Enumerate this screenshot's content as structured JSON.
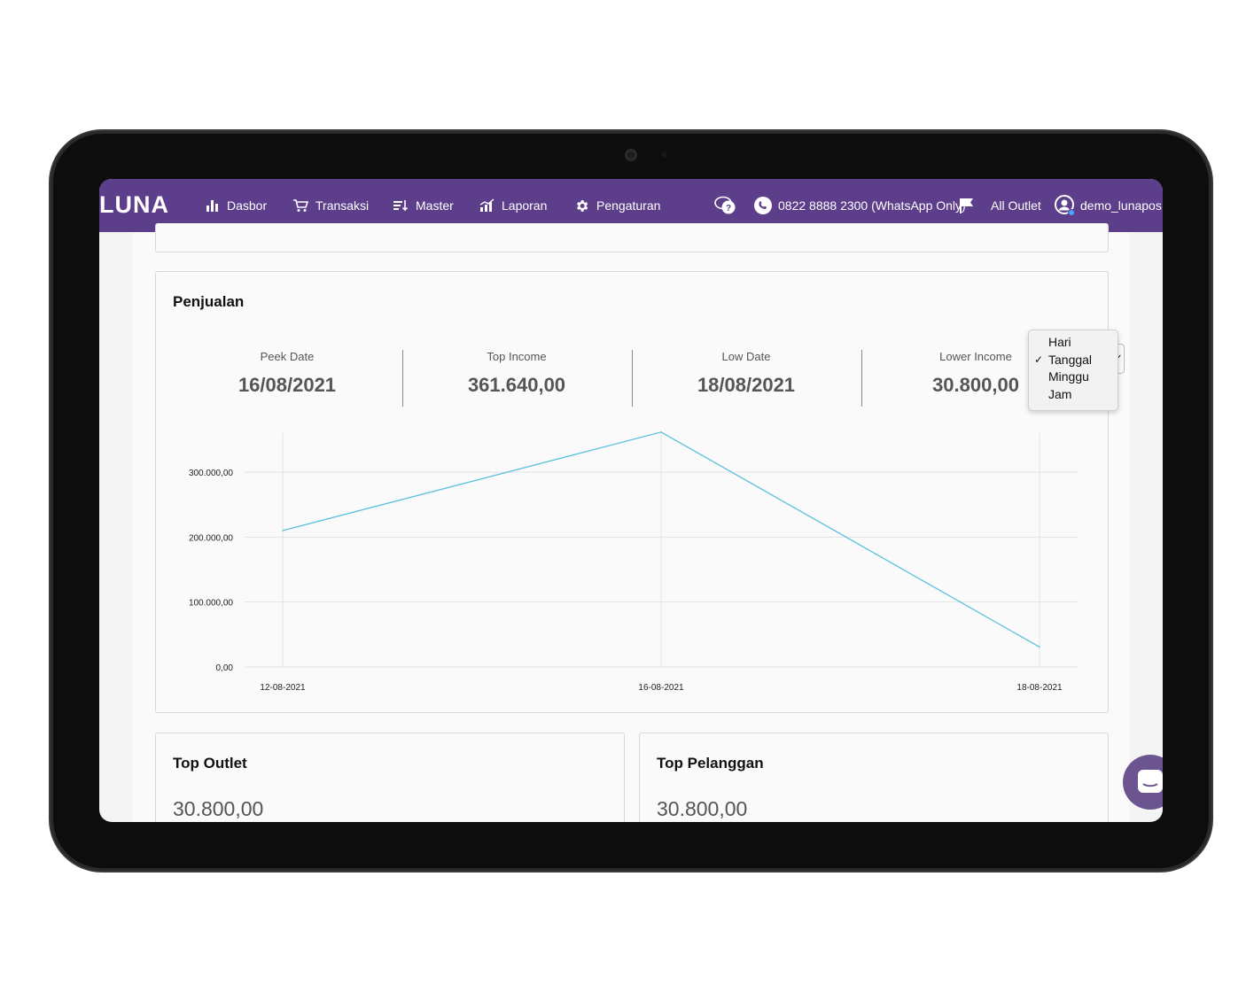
{
  "app": {
    "logo": "LUNA"
  },
  "nav": {
    "items": [
      {
        "label": "Dasbor",
        "icon": "bar-chart-icon"
      },
      {
        "label": "Transaksi",
        "icon": "cart-icon"
      },
      {
        "label": "Master",
        "icon": "sort-list-icon"
      },
      {
        "label": "Laporan",
        "icon": "report-chart-icon"
      },
      {
        "label": "Pengaturan",
        "icon": "gear-icon"
      }
    ],
    "help_icon": "help-chat-icon",
    "whatsapp": "0822 8888 2300 (WhatsApp Only)",
    "outlet_filter": "All Outlet",
    "username": "demo_lunapos",
    "brand_color": "#5d3e8a"
  },
  "sales_card": {
    "title": "Penjualan",
    "period_select": {
      "options": [
        "Hari",
        "Tanggal",
        "Minggu",
        "Jam"
      ],
      "selected": "Tanggal"
    },
    "stats": [
      {
        "label": "Peek Date",
        "value": "16/08/2021"
      },
      {
        "label": "Top Income",
        "value": "361.640,00"
      },
      {
        "label": "Low Date",
        "value": "18/08/2021"
      },
      {
        "label": "Lower Income",
        "value": "30.800,00"
      }
    ]
  },
  "chart_data": {
    "type": "line",
    "x": [
      "12-08-2021",
      "16-08-2021",
      "18-08-2021"
    ],
    "y_ticks": [
      "0,00",
      "100.000,00",
      "200.000,00",
      "300.000,00"
    ],
    "series": [
      {
        "values": [
          210000,
          361640,
          30800
        ],
        "color": "#5bc0de"
      }
    ],
    "ylim": [
      0,
      361640
    ],
    "grid": true
  },
  "top_outlet": {
    "title": "Top Outlet",
    "value": "30.800,00"
  },
  "top_customer": {
    "title": "Top Pelanggan",
    "value": "30.800,00"
  }
}
